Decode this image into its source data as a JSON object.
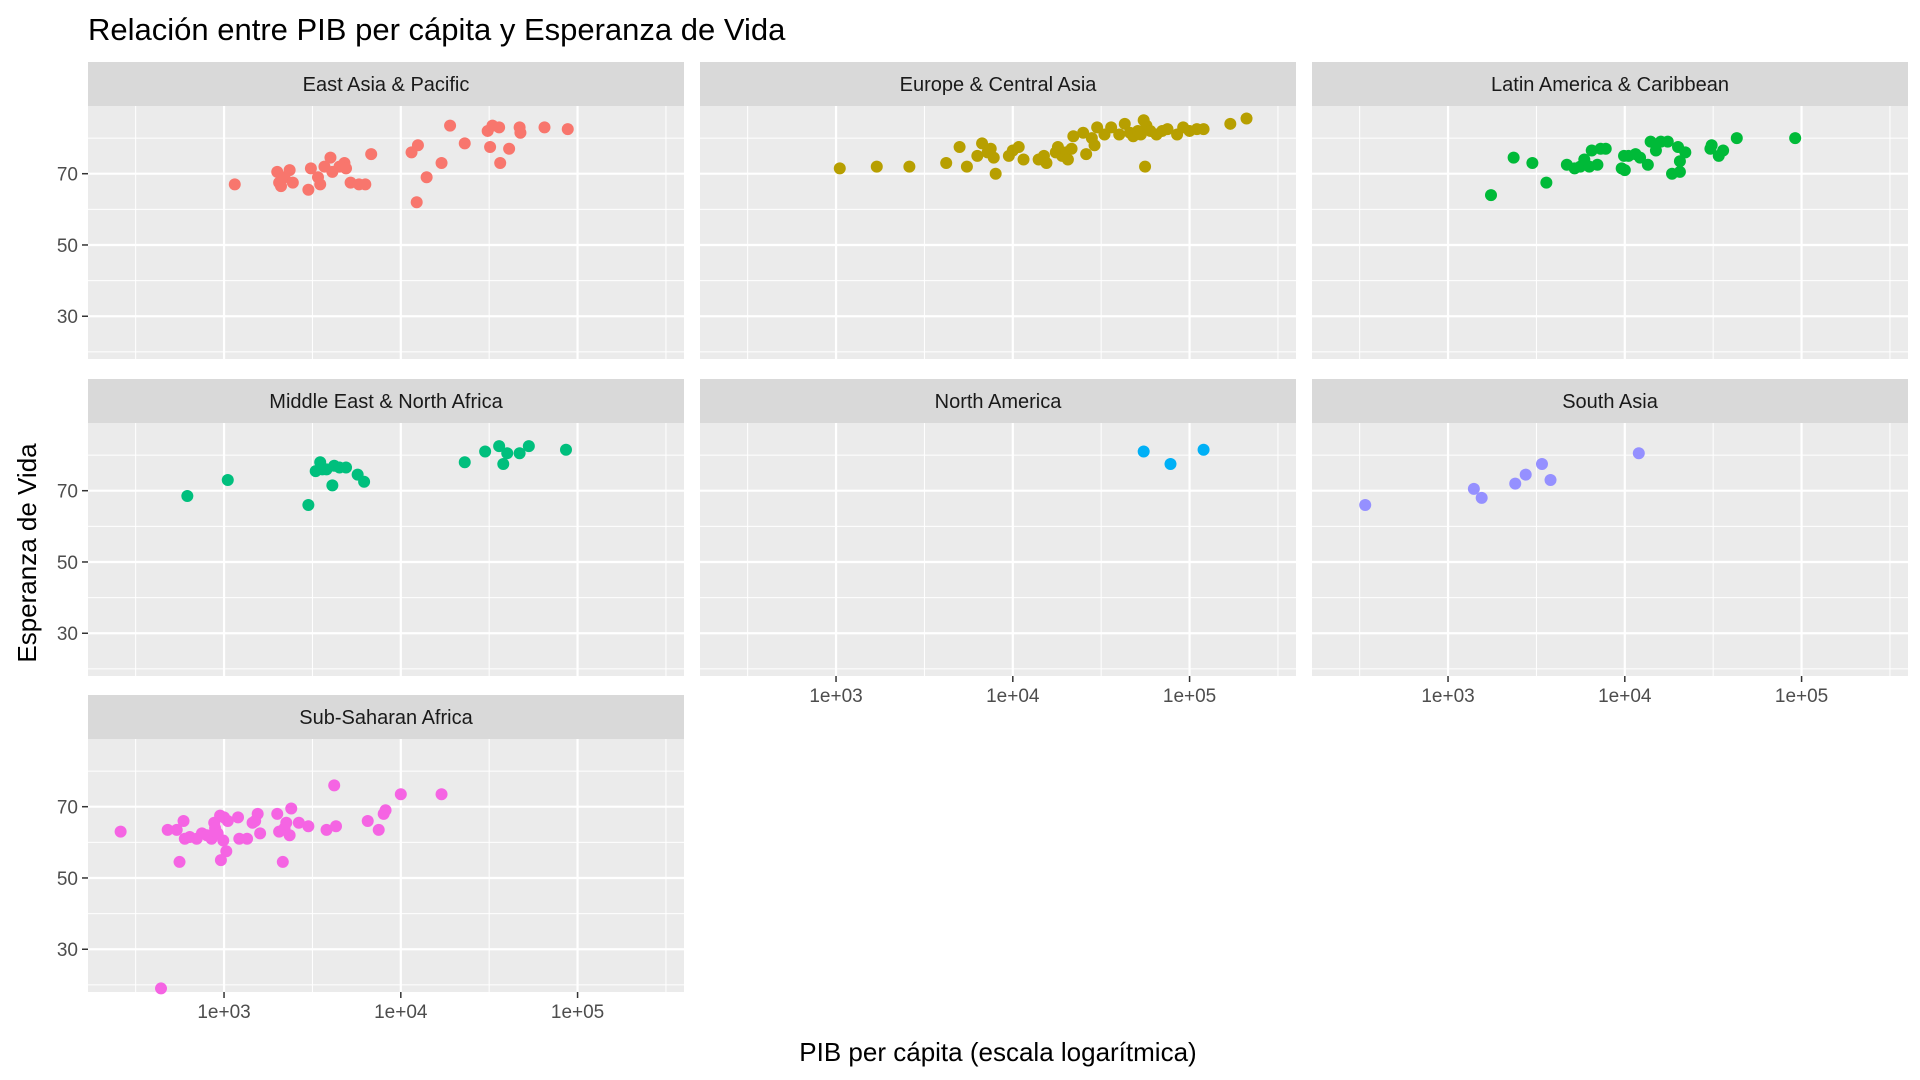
{
  "chart_data": {
    "type": "scatter",
    "title": "Relación entre PIB per cápita y Esperanza de Vida",
    "xlabel": "PIB per cápita (escala logarítmica)",
    "ylabel": "Esperanza de Vida",
    "x_scale": "log10",
    "xlim": [
      170,
      400000
    ],
    "ylim": [
      18,
      89
    ],
    "x_ticks": [
      1000,
      10000,
      100000
    ],
    "x_tick_labels": [
      "1e+03",
      "1e+04",
      "1e+05"
    ],
    "y_ticks": [
      30,
      50,
      70
    ],
    "y_tick_labels": [
      "30",
      "50",
      "70"
    ],
    "grid": true,
    "legend": "none",
    "panels": [
      {
        "name": "East Asia & Pacific",
        "color": "#F8766D",
        "points": [
          [
            1150,
            67
          ],
          [
            2000,
            70.5
          ],
          [
            2050,
            67.5
          ],
          [
            2100,
            66.5
          ],
          [
            2200,
            69
          ],
          [
            2350,
            71
          ],
          [
            2450,
            67.5
          ],
          [
            3000,
            65.5
          ],
          [
            3100,
            71.5
          ],
          [
            3400,
            69
          ],
          [
            3500,
            67
          ],
          [
            3700,
            72
          ],
          [
            4000,
            74.5
          ],
          [
            4100,
            70.5
          ],
          [
            4500,
            72
          ],
          [
            4800,
            73
          ],
          [
            4900,
            71.5
          ],
          [
            5200,
            67.5
          ],
          [
            5800,
            67
          ],
          [
            6300,
            67
          ],
          [
            6800,
            75.5
          ],
          [
            11500,
            76
          ],
          [
            12500,
            78
          ],
          [
            12300,
            62
          ],
          [
            14000,
            69
          ],
          [
            17000,
            73
          ],
          [
            19000,
            83.5
          ],
          [
            23000,
            78.5
          ],
          [
            31000,
            82
          ],
          [
            33000,
            83.5
          ],
          [
            32000,
            77.5
          ],
          [
            36000,
            83
          ],
          [
            36500,
            73
          ],
          [
            41000,
            77
          ],
          [
            47000,
            83
          ],
          [
            47500,
            81.5
          ],
          [
            65000,
            83
          ],
          [
            88000,
            82.5
          ]
        ]
      },
      {
        "name": "Europe & Central Asia",
        "color": "#B79F00",
        "points": [
          [
            1050,
            71.5
          ],
          [
            1700,
            72
          ],
          [
            2600,
            72
          ],
          [
            4200,
            73
          ],
          [
            5000,
            77.5
          ],
          [
            5500,
            72
          ],
          [
            6300,
            75
          ],
          [
            6700,
            78.5
          ],
          [
            7200,
            76
          ],
          [
            7500,
            77
          ],
          [
            8000,
            70
          ],
          [
            7800,
            74.5
          ],
          [
            9500,
            75
          ],
          [
            10000,
            76.5
          ],
          [
            10800,
            77.5
          ],
          [
            11500,
            74
          ],
          [
            14000,
            74
          ],
          [
            15000,
            75
          ],
          [
            15500,
            73
          ],
          [
            17500,
            76
          ],
          [
            18000,
            77.5
          ],
          [
            19000,
            75
          ],
          [
            20000,
            76
          ],
          [
            20500,
            74
          ],
          [
            21500,
            77
          ],
          [
            22000,
            80.5
          ],
          [
            25000,
            81.5
          ],
          [
            26000,
            75.5
          ],
          [
            28000,
            80
          ],
          [
            29000,
            78
          ],
          [
            30000,
            83
          ],
          [
            33000,
            81
          ],
          [
            36000,
            83
          ],
          [
            40000,
            81
          ],
          [
            43000,
            84
          ],
          [
            46000,
            81.5
          ],
          [
            48000,
            80.5
          ],
          [
            51000,
            82
          ],
          [
            53000,
            81
          ],
          [
            55000,
            85
          ],
          [
            56000,
            72
          ],
          [
            57000,
            83.5
          ],
          [
            60000,
            82
          ],
          [
            65000,
            81
          ],
          [
            70000,
            82
          ],
          [
            75000,
            82.5
          ],
          [
            85000,
            81
          ],
          [
            92000,
            83
          ],
          [
            100000,
            82
          ],
          [
            110000,
            82.5
          ],
          [
            120000,
            82.5
          ],
          [
            170000,
            84
          ],
          [
            210000,
            85.5
          ]
        ]
      },
      {
        "name": "Latin America & Caribbean",
        "color": "#00BA38",
        "points": [
          [
            1750,
            64
          ],
          [
            2350,
            74.5
          ],
          [
            3000,
            73
          ],
          [
            3600,
            67.5
          ],
          [
            4700,
            72.5
          ],
          [
            5200,
            71.5
          ],
          [
            5600,
            72
          ],
          [
            5900,
            74
          ],
          [
            6300,
            72
          ],
          [
            6500,
            76.5
          ],
          [
            7000,
            72.5
          ],
          [
            7300,
            77
          ],
          [
            7800,
            77
          ],
          [
            9600,
            71.5
          ],
          [
            9900,
            75
          ],
          [
            10000,
            71
          ],
          [
            10500,
            75
          ],
          [
            11500,
            75.5
          ],
          [
            12200,
            74.5
          ],
          [
            13500,
            72.5
          ],
          [
            14000,
            79
          ],
          [
            15000,
            76.5
          ],
          [
            16000,
            79
          ],
          [
            17500,
            79
          ],
          [
            18500,
            70
          ],
          [
            20000,
            77.5
          ],
          [
            20500,
            73.5
          ],
          [
            20500,
            70.5
          ],
          [
            22000,
            76
          ],
          [
            30500,
            77
          ],
          [
            31000,
            78
          ],
          [
            34000,
            75
          ],
          [
            36000,
            76.5
          ],
          [
            43000,
            80
          ],
          [
            92000,
            80
          ]
        ]
      },
      {
        "name": "Middle East & North Africa",
        "color": "#00BF7D",
        "points": [
          [
            620,
            68.5
          ],
          [
            1050,
            73
          ],
          [
            3000,
            66
          ],
          [
            3300,
            75.5
          ],
          [
            3500,
            78
          ],
          [
            3600,
            76
          ],
          [
            3800,
            76
          ],
          [
            4100,
            71.5
          ],
          [
            4200,
            77
          ],
          [
            4500,
            76.5
          ],
          [
            4900,
            76.5
          ],
          [
            5700,
            74.5
          ],
          [
            6200,
            72.5
          ],
          [
            23000,
            78
          ],
          [
            30000,
            81
          ],
          [
            36000,
            82.5
          ],
          [
            38000,
            77.5
          ],
          [
            40000,
            80.5
          ],
          [
            47000,
            80.5
          ],
          [
            53000,
            82.5
          ],
          [
            86000,
            81.5
          ]
        ]
      },
      {
        "name": "North America",
        "color": "#00B0F6",
        "points": [
          [
            55000,
            81
          ],
          [
            78000,
            77.5
          ],
          [
            120000,
            81.5
          ]
        ]
      },
      {
        "name": "South Asia",
        "color": "#9590FF",
        "points": [
          [
            340,
            66
          ],
          [
            1400,
            70.5
          ],
          [
            1550,
            68
          ],
          [
            2400,
            72
          ],
          [
            2750,
            74.5
          ],
          [
            3400,
            77.5
          ],
          [
            3800,
            73
          ],
          [
            12000,
            80.5
          ]
        ]
      },
      {
        "name": "Sub-Saharan Africa",
        "color": "#F564E3",
        "points": [
          [
            260,
            63
          ],
          [
            440,
            19
          ],
          [
            480,
            63.5
          ],
          [
            540,
            63.5
          ],
          [
            560,
            54.5
          ],
          [
            590,
            66
          ],
          [
            600,
            61
          ],
          [
            640,
            61.5
          ],
          [
            700,
            61
          ],
          [
            750,
            62.5
          ],
          [
            800,
            62
          ],
          [
            850,
            61
          ],
          [
            880,
            65.5
          ],
          [
            890,
            64
          ],
          [
            920,
            62.5
          ],
          [
            950,
            67.5
          ],
          [
            960,
            55
          ],
          [
            990,
            60.5
          ],
          [
            1000,
            67
          ],
          [
            1030,
            57.5
          ],
          [
            1050,
            66
          ],
          [
            1200,
            67
          ],
          [
            1220,
            61
          ],
          [
            1350,
            61
          ],
          [
            1450,
            65.5
          ],
          [
            1500,
            66
          ],
          [
            1550,
            68
          ],
          [
            1600,
            62.5
          ],
          [
            2000,
            68
          ],
          [
            2050,
            63
          ],
          [
            2150,
            54.5
          ],
          [
            2200,
            64
          ],
          [
            2250,
            65.5
          ],
          [
            2350,
            62
          ],
          [
            2400,
            69.5
          ],
          [
            2650,
            65.5
          ],
          [
            3000,
            64.5
          ],
          [
            3800,
            63.5
          ],
          [
            4200,
            76
          ],
          [
            4300,
            64.5
          ],
          [
            6500,
            66
          ],
          [
            7500,
            63.5
          ],
          [
            8000,
            68
          ],
          [
            8200,
            69
          ],
          [
            10000,
            73.5
          ],
          [
            17000,
            73.5
          ]
        ]
      }
    ]
  }
}
